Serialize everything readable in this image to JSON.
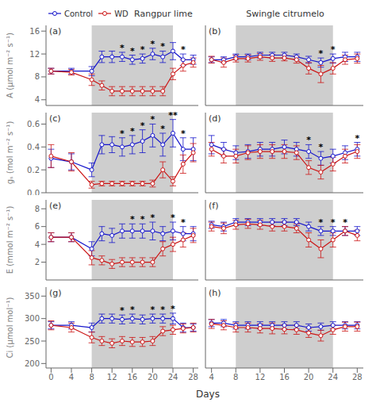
{
  "xlabel": "Days",
  "chart_data": [
    {
      "type": "line",
      "panel_label": "(a)",
      "title": "Rangpur lime",
      "ylabel": "A (μmol m⁻² s⁻¹)",
      "legend": "upper left",
      "tick_labels": "y",
      "x": [
        0,
        4,
        8,
        10,
        12,
        14,
        16,
        18,
        20,
        22,
        24,
        26,
        28
      ],
      "series": [
        {
          "name": "Control",
          "color": "#1515cc",
          "marker": "o",
          "values": [
            9.0,
            9.0,
            9.0,
            11.5,
            11.5,
            11.5,
            11.0,
            11.2,
            12.0,
            11.5,
            12.5,
            11.0,
            11.0
          ],
          "errors": [
            0.5,
            0.5,
            0.8,
            1.0,
            1.0,
            0.8,
            0.8,
            0.8,
            1.0,
            1.0,
            1.5,
            1.0,
            0.8
          ]
        },
        {
          "name": "WD",
          "color": "#cc1515",
          "marker": "o",
          "values": [
            9.0,
            8.8,
            7.5,
            6.5,
            5.5,
            5.5,
            5.5,
            5.5,
            5.5,
            5.5,
            8.5,
            10.0,
            10.5
          ],
          "errors": [
            0.5,
            0.5,
            1.0,
            0.8,
            0.8,
            0.8,
            0.8,
            0.8,
            0.8,
            0.8,
            1.0,
            1.0,
            0.8
          ]
        }
      ],
      "xlim": [
        -1,
        29
      ],
      "xticks": [
        0,
        4,
        8,
        12,
        16,
        20,
        24,
        28
      ],
      "ylim": [
        3,
        17
      ],
      "yticks": [
        4,
        8,
        12,
        16
      ],
      "shaded": {
        "x": [
          8,
          24
        ],
        "color": "#cecece"
      },
      "annotations": [
        {
          "x": 14,
          "text": "*"
        },
        {
          "x": 16,
          "text": "*"
        },
        {
          "x": 18,
          "text": "*"
        },
        {
          "x": 20,
          "text": "*"
        },
        {
          "x": 22,
          "text": "*"
        },
        {
          "x": 26,
          "text": "*"
        }
      ]
    },
    {
      "type": "line",
      "panel_label": "(b)",
      "title": "Swingle citrumelo",
      "tick_labels": false,
      "x": [
        4,
        6,
        8,
        10,
        12,
        14,
        16,
        18,
        20,
        22,
        24,
        26,
        28
      ],
      "series": [
        {
          "name": "Control",
          "color": "#1515cc",
          "marker": "o",
          "values": [
            11.0,
            11.0,
            11.5,
            11.5,
            11.8,
            11.8,
            11.8,
            11.5,
            11.0,
            10.5,
            11.2,
            11.5,
            11.5
          ],
          "errors": [
            0.5,
            0.5,
            0.5,
            0.5,
            0.5,
            0.5,
            0.5,
            0.5,
            0.6,
            0.8,
            0.8,
            0.8,
            0.8
          ]
        },
        {
          "name": "WD",
          "color": "#cc1515",
          "marker": "o",
          "values": [
            11.0,
            10.5,
            11.2,
            11.2,
            11.5,
            11.3,
            11.3,
            11.0,
            9.5,
            8.5,
            9.5,
            11.0,
            11.2
          ],
          "errors": [
            0.6,
            0.8,
            0.6,
            0.6,
            0.6,
            0.6,
            0.5,
            0.6,
            1.0,
            1.5,
            1.0,
            0.8,
            0.8
          ]
        }
      ],
      "xlim": [
        3,
        29
      ],
      "xticks": [
        4,
        8,
        12,
        16,
        20,
        24,
        28
      ],
      "ylim": [
        3,
        17
      ],
      "yticks": [
        4,
        8,
        12,
        16
      ],
      "shaded": {
        "x": [
          8,
          24
        ],
        "color": "#cecece"
      },
      "annotations": [
        {
          "x": 22,
          "text": "*"
        },
        {
          "x": 24,
          "text": "*"
        }
      ]
    },
    {
      "type": "line",
      "panel_label": "(c)",
      "ylabel": "gₛ (mol m⁻² s⁻¹)",
      "tick_labels": "y",
      "x": [
        0,
        4,
        8,
        10,
        12,
        14,
        16,
        18,
        20,
        22,
        24,
        26,
        28
      ],
      "series": [
        {
          "name": "Control",
          "color": "#1515cc",
          "marker": "o",
          "values": [
            0.3,
            0.27,
            0.2,
            0.42,
            0.42,
            0.4,
            0.42,
            0.45,
            0.5,
            0.42,
            0.52,
            0.38,
            0.38
          ],
          "errors": [
            0.08,
            0.07,
            0.06,
            0.08,
            0.07,
            0.08,
            0.08,
            0.1,
            0.1,
            0.1,
            0.12,
            0.1,
            0.1
          ]
        },
        {
          "name": "WD",
          "color": "#cc1515",
          "marker": "o",
          "values": [
            0.32,
            0.27,
            0.07,
            0.08,
            0.08,
            0.08,
            0.08,
            0.08,
            0.08,
            0.2,
            0.1,
            0.25,
            0.35
          ],
          "errors": [
            0.1,
            0.08,
            0.03,
            0.02,
            0.02,
            0.02,
            0.02,
            0.02,
            0.03,
            0.07,
            0.04,
            0.08,
            0.08
          ]
        }
      ],
      "xlim": [
        -1,
        29
      ],
      "xticks": [
        0,
        4,
        8,
        12,
        16,
        20,
        24,
        28
      ],
      "ylim": [
        0,
        0.7
      ],
      "yticks": [
        {
          "value": 0,
          "label": "0.0"
        },
        0.2,
        0.4,
        0.6
      ],
      "shaded": {
        "x": [
          8,
          24
        ],
        "color": "#cecece"
      },
      "annotations": [
        {
          "x": 14,
          "text": "*"
        },
        {
          "x": 16,
          "text": "*"
        },
        {
          "x": 18,
          "text": "*"
        },
        {
          "x": 20,
          "text": "*"
        },
        {
          "x": 22,
          "text": "*"
        },
        {
          "x": 24,
          "text": "**"
        },
        {
          "x": 26,
          "text": "*"
        }
      ]
    },
    {
      "type": "line",
      "panel_label": "(d)",
      "tick_labels": false,
      "x": [
        4,
        6,
        8,
        10,
        12,
        14,
        16,
        18,
        20,
        22,
        24,
        26,
        28
      ],
      "series": [
        {
          "name": "Control",
          "color": "#1515cc",
          "marker": "o",
          "values": [
            0.42,
            0.38,
            0.35,
            0.36,
            0.38,
            0.38,
            0.4,
            0.38,
            0.36,
            0.3,
            0.32,
            0.35,
            0.38
          ],
          "errors": [
            0.08,
            0.06,
            0.06,
            0.06,
            0.06,
            0.06,
            0.06,
            0.06,
            0.06,
            0.06,
            0.06,
            0.06,
            0.06
          ]
        },
        {
          "name": "WD",
          "color": "#cc1515",
          "marker": "o",
          "values": [
            0.38,
            0.32,
            0.32,
            0.35,
            0.36,
            0.36,
            0.36,
            0.35,
            0.22,
            0.18,
            0.25,
            0.32,
            0.36
          ],
          "errors": [
            0.06,
            0.06,
            0.06,
            0.06,
            0.06,
            0.06,
            0.06,
            0.06,
            0.06,
            0.06,
            0.06,
            0.06,
            0.06
          ]
        }
      ],
      "xlim": [
        3,
        29
      ],
      "xticks": [
        4,
        8,
        12,
        16,
        20,
        24,
        28
      ],
      "ylim": [
        0,
        0.7
      ],
      "yticks": [
        {
          "value": 0,
          "label": "0.0"
        },
        0.2,
        0.4,
        0.6
      ],
      "shaded": {
        "x": [
          8,
          24
        ],
        "color": "#cecece"
      },
      "annotations": [
        {
          "x": 20,
          "text": "*"
        },
        {
          "x": 22,
          "text": "*"
        },
        {
          "x": 28,
          "text": "*"
        }
      ]
    },
    {
      "type": "line",
      "panel_label": "(e)",
      "ylabel": "E (mmol m⁻² s⁻¹)",
      "tick_labels": "y",
      "x": [
        0,
        4,
        8,
        10,
        12,
        14,
        16,
        18,
        20,
        22,
        24,
        26,
        28
      ],
      "series": [
        {
          "name": "Control",
          "color": "#1515cc",
          "marker": "o",
          "values": [
            4.8,
            4.8,
            3.5,
            5.2,
            5.0,
            5.5,
            5.5,
            5.5,
            5.5,
            5.2,
            5.5,
            5.2,
            5.2
          ],
          "errors": [
            0.5,
            0.5,
            0.8,
            0.8,
            0.8,
            0.8,
            0.8,
            0.8,
            1.0,
            0.8,
            1.0,
            0.8,
            0.8
          ]
        },
        {
          "name": "WD",
          "color": "#cc1515",
          "marker": "o",
          "values": [
            4.8,
            4.8,
            2.5,
            2.2,
            1.8,
            2.0,
            2.0,
            2.0,
            2.0,
            3.5,
            4.0,
            4.5,
            5.0
          ],
          "errors": [
            0.5,
            0.5,
            0.8,
            0.5,
            0.5,
            0.5,
            0.5,
            0.5,
            0.5,
            0.8,
            0.8,
            0.8,
            0.8
          ]
        }
      ],
      "xlim": [
        -1,
        29
      ],
      "xticks": [
        0,
        4,
        8,
        12,
        16,
        20,
        24,
        28
      ],
      "ylim": [
        0,
        9
      ],
      "yticks": [
        2,
        4,
        6,
        8
      ],
      "shaded": {
        "x": [
          8,
          24
        ],
        "color": "#cecece"
      },
      "annotations": [
        {
          "x": 16,
          "text": "*"
        },
        {
          "x": 18,
          "text": "*"
        },
        {
          "x": 20,
          "text": "*"
        },
        {
          "x": 24,
          "text": "*"
        },
        {
          "x": 26,
          "text": "*"
        }
      ]
    },
    {
      "type": "line",
      "panel_label": "(f)",
      "tick_labels": false,
      "x": [
        4,
        6,
        8,
        10,
        12,
        14,
        16,
        18,
        20,
        22,
        24,
        26,
        28
      ],
      "series": [
        {
          "name": "Control",
          "color": "#1515cc",
          "marker": "o",
          "values": [
            6.2,
            6.0,
            6.5,
            6.5,
            6.5,
            6.5,
            6.5,
            6.5,
            6.0,
            5.5,
            5.5,
            5.5,
            5.5
          ],
          "errors": [
            0.4,
            0.5,
            0.4,
            0.4,
            0.4,
            0.4,
            0.4,
            0.4,
            0.5,
            0.5,
            0.5,
            0.5,
            0.5
          ]
        },
        {
          "name": "WD",
          "color": "#cc1515",
          "marker": "o",
          "values": [
            6.0,
            5.8,
            6.2,
            6.3,
            6.2,
            6.0,
            6.0,
            5.8,
            4.5,
            3.5,
            4.5,
            5.5,
            5.0
          ],
          "errors": [
            0.5,
            0.6,
            0.5,
            0.5,
            0.5,
            0.5,
            0.5,
            0.5,
            0.8,
            1.0,
            0.8,
            0.5,
            0.6
          ]
        }
      ],
      "xlim": [
        3,
        29
      ],
      "xticks": [
        4,
        8,
        12,
        16,
        20,
        24,
        28
      ],
      "ylim": [
        0,
        9
      ],
      "yticks": [
        2,
        4,
        6,
        8
      ],
      "shaded": {
        "x": [
          8,
          24
        ],
        "color": "#cecece"
      },
      "annotations": [
        {
          "x": 22,
          "text": "*"
        },
        {
          "x": 24,
          "text": "*"
        },
        {
          "x": 26,
          "text": "*"
        }
      ]
    },
    {
      "type": "line",
      "panel_label": "(g)",
      "ylabel": "Ci (μmol mol⁻¹)",
      "tick_labels": true,
      "x": [
        0,
        4,
        8,
        10,
        12,
        14,
        16,
        18,
        20,
        22,
        24,
        26,
        28
      ],
      "series": [
        {
          "name": "Control",
          "color": "#1515cc",
          "marker": "o",
          "values": [
            285,
            285,
            280,
            300,
            300,
            298,
            300,
            298,
            300,
            300,
            300,
            280,
            280
          ],
          "errors": [
            8,
            8,
            10,
            10,
            10,
            10,
            10,
            10,
            10,
            10,
            12,
            10,
            8
          ]
        },
        {
          "name": "WD",
          "color": "#cc1515",
          "marker": "o",
          "values": [
            285,
            280,
            258,
            250,
            245,
            250,
            248,
            248,
            250,
            272,
            275,
            278,
            280
          ],
          "errors": [
            10,
            10,
            12,
            10,
            10,
            10,
            10,
            10,
            10,
            10,
            10,
            10,
            10
          ]
        }
      ],
      "xlim": [
        -1,
        29
      ],
      "xticks": [
        0,
        4,
        8,
        12,
        16,
        20,
        24,
        28
      ],
      "ylim": [
        190,
        370
      ],
      "yticks": [
        200,
        250,
        300,
        350
      ],
      "shaded": {
        "x": [
          8,
          24
        ],
        "color": "#cecece"
      },
      "annotations": [
        {
          "x": 14,
          "text": "*"
        },
        {
          "x": 16,
          "text": "*"
        },
        {
          "x": 20,
          "text": "*"
        },
        {
          "x": 22,
          "text": "*"
        },
        {
          "x": 24,
          "text": "*"
        }
      ]
    },
    {
      "type": "line",
      "panel_label": "(h)",
      "tick_labels": "x",
      "x": [
        4,
        6,
        8,
        10,
        12,
        14,
        16,
        18,
        20,
        22,
        24,
        26,
        28
      ],
      "series": [
        {
          "name": "Control",
          "color": "#1515cc",
          "marker": "o",
          "values": [
            290,
            290,
            285,
            285,
            285,
            285,
            285,
            285,
            280,
            282,
            285,
            285,
            285
          ],
          "errors": [
            8,
            8,
            8,
            8,
            8,
            8,
            8,
            8,
            8,
            8,
            8,
            8,
            8
          ]
        },
        {
          "name": "WD",
          "color": "#cc1515",
          "marker": "o",
          "values": [
            288,
            285,
            280,
            280,
            278,
            278,
            276,
            275,
            268,
            262,
            275,
            282,
            282
          ],
          "errors": [
            10,
            10,
            10,
            10,
            10,
            12,
            10,
            10,
            10,
            12,
            10,
            10,
            10
          ]
        }
      ],
      "xlim": [
        3,
        29
      ],
      "xticks": [
        4,
        8,
        12,
        16,
        20,
        24,
        28
      ],
      "ylim": [
        190,
        370
      ],
      "yticks": [
        200,
        250,
        300,
        350
      ],
      "shaded": {
        "x": [
          8,
          24
        ],
        "color": "#cecece"
      },
      "annotations": []
    }
  ]
}
